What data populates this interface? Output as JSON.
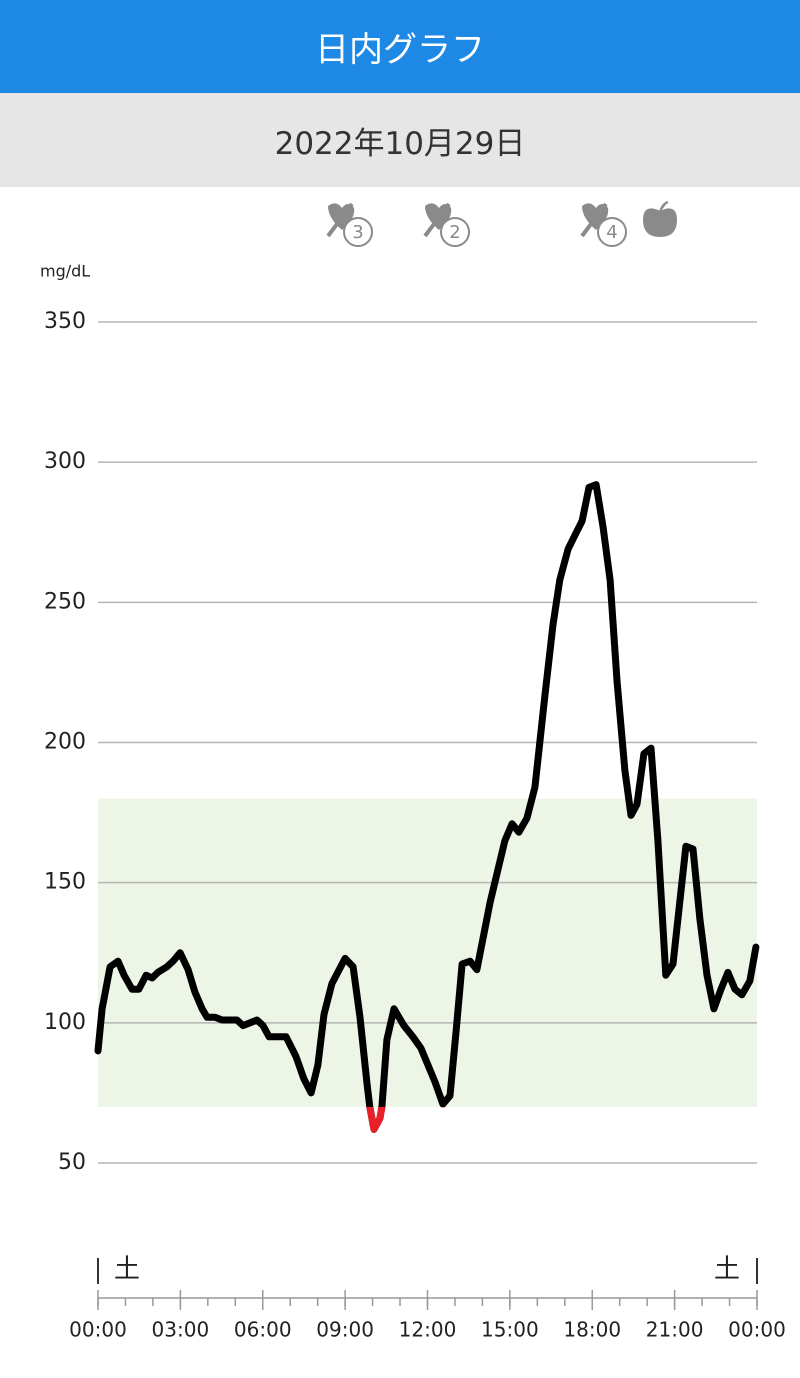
{
  "header": {
    "title": "日内グラフ",
    "date": "2022年10月29日"
  },
  "events": [
    {
      "label": "3"
    },
    {
      "label": "2"
    },
    {
      "label": "4"
    }
  ],
  "chart_data": {
    "type": "line",
    "y_label": "mg/dL",
    "x": [
      0,
      0.15,
      0.44,
      0.73,
      0.95,
      1.24,
      1.49,
      1.75,
      1.97,
      2.18,
      2.51,
      2.73,
      2.99,
      3.28,
      3.53,
      3.79,
      3.97,
      4.26,
      4.52,
      5.06,
      5.28,
      5.79,
      6.01,
      6.23,
      6.85,
      7.21,
      7.5,
      7.76,
      8.01,
      8.23,
      8.52,
      9,
      9.29,
      9.54,
      9.8,
      9.9,
      10.05,
      10.27,
      10.34,
      10.52,
      10.78,
      11.14,
      11.47,
      11.76,
      12.27,
      12.56,
      12.82,
      13.04,
      13.26,
      13.55,
      13.8,
      14.28,
      14.82,
      15.08,
      15.33,
      15.62,
      15.91,
      16.28,
      16.57,
      16.82,
      17.12,
      17.37,
      17.63,
      17.88,
      18.14,
      18.39,
      18.65,
      18.9,
      19.19,
      19.41,
      19.63,
      19.88,
      20.14,
      20.39,
      20.68,
      20.94,
      21.41,
      21.67,
      21.92,
      22.18,
      22.43,
      22.69,
      22.94,
      23.2,
      23.45,
      23.74,
      23.96
    ],
    "series": [
      {
        "color": "#000000",
        "low_color": "#e8202a",
        "values": [
          90,
          105,
          120,
          122,
          117,
          112,
          112,
          117,
          116,
          118,
          120,
          122,
          125,
          119,
          111,
          105,
          102,
          102,
          101,
          101,
          99,
          101,
          99,
          95,
          95,
          88,
          80,
          75,
          85,
          103,
          114,
          123,
          120,
          102,
          78,
          70,
          62,
          66,
          70,
          94,
          105,
          99,
          95,
          91,
          79,
          71,
          74,
          97,
          121,
          122,
          119,
          143,
          165,
          171,
          168,
          173,
          184,
          217,
          242,
          258,
          269,
          274,
          279,
          291,
          292,
          277,
          258,
          222,
          190,
          174,
          178,
          196,
          198,
          165,
          117,
          121,
          163,
          162,
          137,
          117,
          105,
          112,
          118,
          112,
          110,
          115,
          127
        ]
      }
    ],
    "target_range": [
      70,
      180
    ],
    "target_color": "#edf6e6",
    "xlim": [
      0,
      24
    ],
    "xticks": [
      {
        "value": 0,
        "label": "00:00"
      },
      {
        "value": 3,
        "label": "03:00"
      },
      {
        "value": 6,
        "label": "06:00"
      },
      {
        "value": 9,
        "label": "09:00"
      },
      {
        "value": 12,
        "label": "12:00"
      },
      {
        "value": 15,
        "label": "15:00"
      },
      {
        "value": 18,
        "label": "18:00"
      },
      {
        "value": 21,
        "label": "21:00"
      },
      {
        "value": 24,
        "label": "00:00"
      }
    ],
    "day_labels": [
      "土",
      "土"
    ],
    "ylim": [
      50,
      350
    ],
    "yticks": [
      50,
      100,
      150,
      200,
      250,
      300,
      350
    ],
    "grid": true
  }
}
